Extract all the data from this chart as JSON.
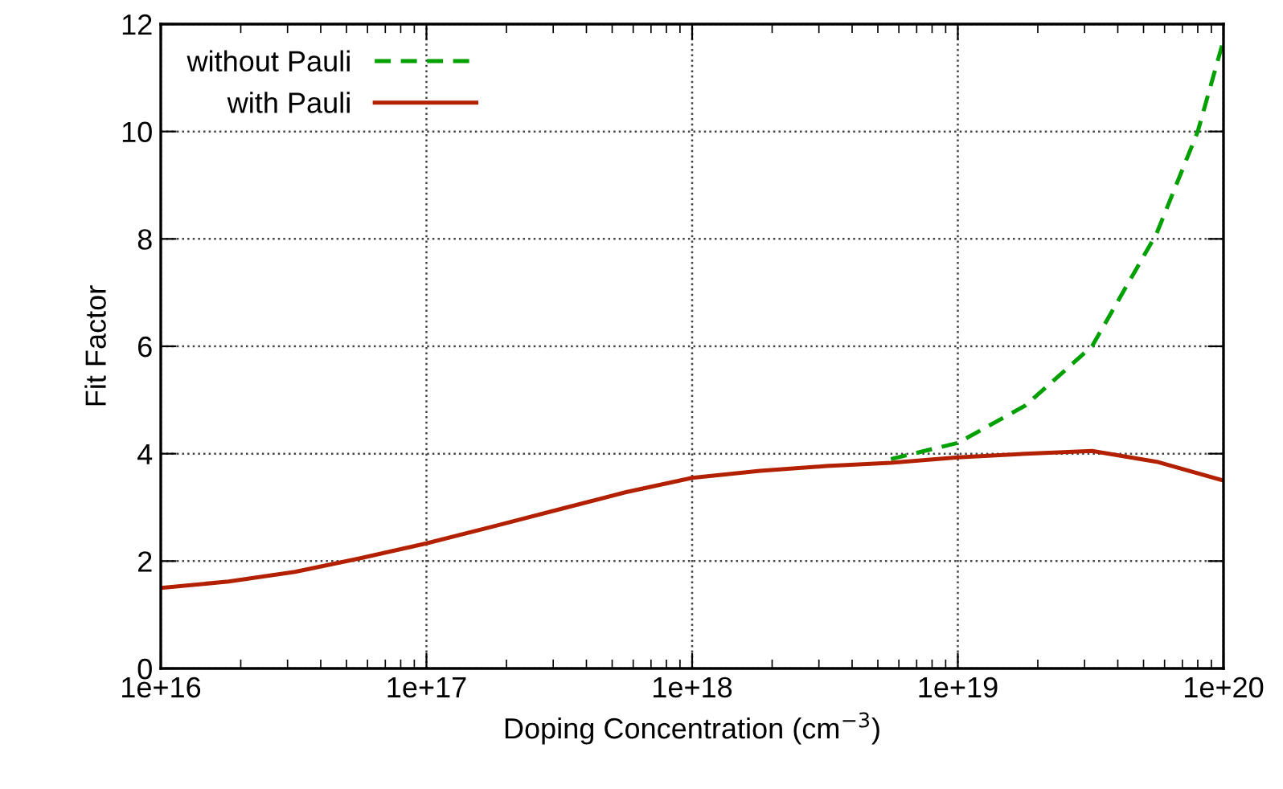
{
  "chart_data": {
    "type": "line",
    "xlabel": "Doping Concentration (cm$^{−3}$)",
    "ylabel": "Fit Factor",
    "log": "x",
    "xlim": [
      1e+16,
      1e+20
    ],
    "xticks": [
      {
        "value": 1e+16,
        "label": "1e+16"
      },
      {
        "value": 1e+17,
        "label": "1e+17"
      },
      {
        "value": 1e+18,
        "label": "1e+18"
      },
      {
        "value": 1e+19,
        "label": "1e+19"
      },
      {
        "value": 1e+20,
        "label": "1e+20"
      }
    ],
    "ylim": [
      0,
      12
    ],
    "yticks": [
      0,
      2,
      4,
      6,
      8,
      10,
      12
    ],
    "grid": true,
    "legend": "top left",
    "series": [
      {
        "name": "without Pauli",
        "color": "#00a000",
        "line_style": "dashed",
        "x": [
          5.6e+18,
          1e+19,
          1.8e+19,
          3.2e+19,
          5.6e+19,
          8e+19,
          1e+20
        ],
        "values": [
          3.9,
          4.2,
          4.9,
          6.0,
          8.1,
          10.0,
          11.7
        ]
      },
      {
        "name": "with Pauli",
        "color": "#b22000",
        "line_style": "solid",
        "x": [
          1e+16,
          1.8e+16,
          3.2e+16,
          5.6e+16,
          1e+17,
          1.8e+17,
          3.2e+17,
          5.6e+17,
          1e+18,
          1.8e+18,
          3.2e+18,
          5.6e+18,
          1e+19,
          1.8e+19,
          3.2e+19,
          5.6e+19,
          1e+20
        ],
        "values": [
          1.5,
          1.62,
          1.8,
          2.05,
          2.33,
          2.65,
          2.97,
          3.28,
          3.55,
          3.68,
          3.77,
          3.83,
          3.93,
          4.0,
          4.05,
          3.85,
          3.5
        ]
      }
    ]
  }
}
